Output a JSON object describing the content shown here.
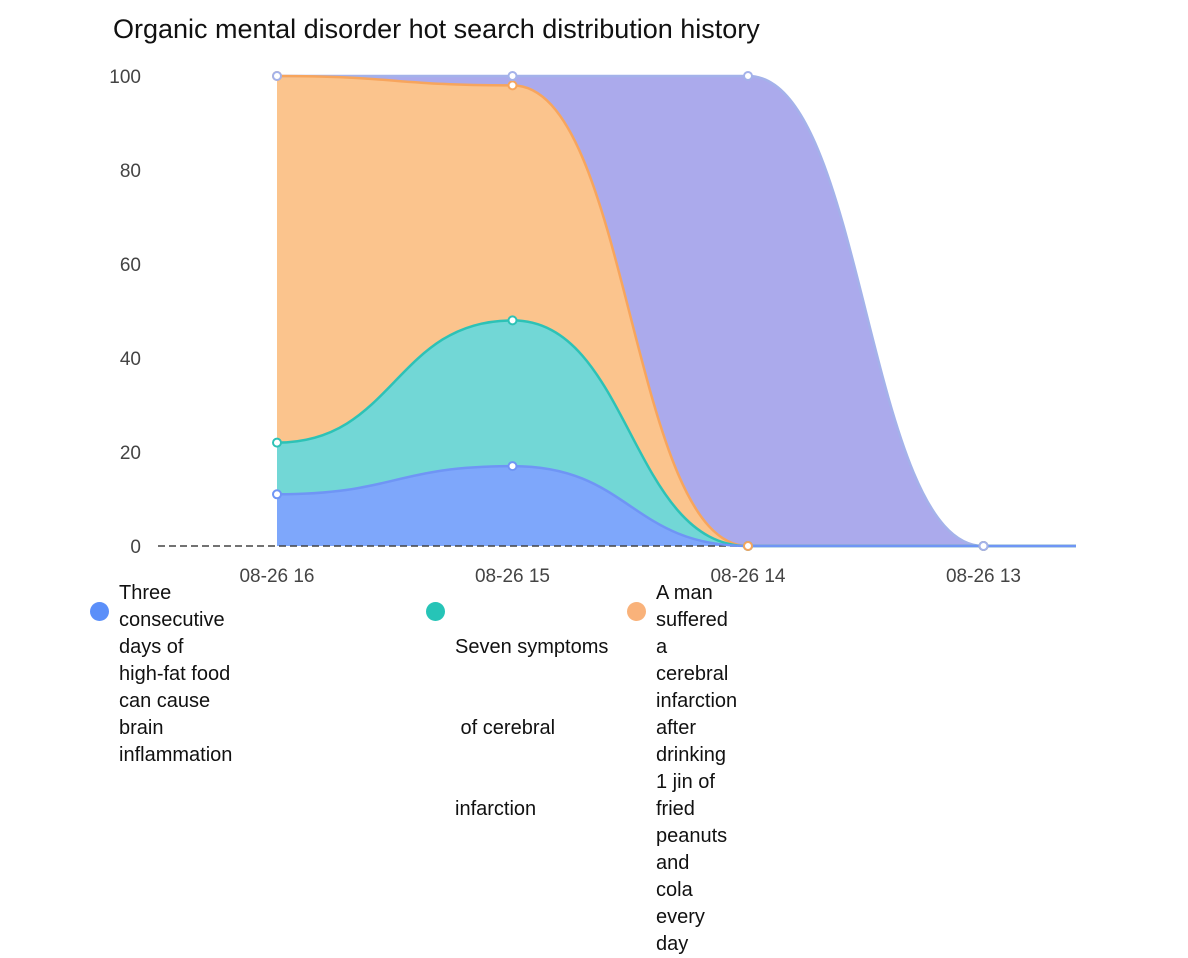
{
  "chart_data": {
    "type": "area",
    "title": "Organic mental disorder hot search distribution history",
    "x": [
      "08-26 16",
      "08-26 15",
      "08-26 14",
      "08-26 13"
    ],
    "ylim": [
      0,
      100
    ],
    "yticks": [
      0,
      20,
      40,
      60,
      80,
      100
    ],
    "stacked_percent": true,
    "grid": false,
    "legend_position": "bottom",
    "series": [
      {
        "name": "Three consecutive days of high-fat food can cause brain inflammation",
        "values": [
          11,
          17,
          0,
          0
        ],
        "color": "#7ea7fb",
        "line_color": "#6f95f5"
      },
      {
        "name": "Seven symptoms of cerebral infarction",
        "values": [
          22,
          48,
          0,
          0
        ],
        "color": "#72d7d6",
        "line_color": "#2dc2b6"
      },
      {
        "name": "A man suffered a cerebral infarction after drinking 1 jin of fried peanuts and cola every day",
        "values": [
          100,
          98,
          0,
          0
        ],
        "color": "#fbc48d",
        "line_color": "#f7a55d"
      },
      {
        "name": "",
        "values": [
          100,
          100,
          100,
          0
        ],
        "color": "#abaaec",
        "line_color": "#a4b2ea"
      }
    ]
  },
  "legend": {
    "items": [
      {
        "lines": [
          "Three consecutive days of",
          "high-fat food can cause brain",
          "inflammation"
        ],
        "color": "#5b8ff9"
      },
      {
        "lines": [
          "Seven symptoms",
          " of cerebral",
          "infarction"
        ],
        "color": "#26c4b7"
      },
      {
        "lines": [
          "A man suffered a cerebral infarction",
          "after drinking 1 jin of fried peanuts and",
          "cola every day"
        ],
        "color": "#f9b27a"
      }
    ]
  }
}
